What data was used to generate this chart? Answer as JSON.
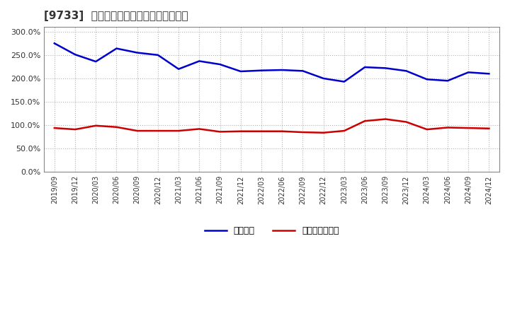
{
  "title": "[9733]  固定比率、固定長期適合率の推移",
  "title_fontsize": 11,
  "background_color": "#ffffff",
  "plot_bg_color": "#ffffff",
  "grid_color": "#aaaaaa",
  "fixed_ratio_dates": [
    "2019-09",
    "2019-12",
    "2020-03",
    "2020-06",
    "2020-09",
    "2020-12",
    "2021-03",
    "2021-06",
    "2021-09",
    "2021-12",
    "2022-03",
    "2022-06",
    "2022-09",
    "2022-12",
    "2023-03",
    "2023-06",
    "2023-09",
    "2023-12",
    "2024-03",
    "2024-06",
    "2024-09",
    "2024-12"
  ],
  "fixed_ratio_values": [
    2.75,
    2.51,
    2.36,
    2.64,
    2.55,
    2.5,
    2.2,
    2.37,
    2.3,
    2.15,
    2.17,
    2.18,
    2.16,
    2.0,
    1.93,
    2.24,
    2.22,
    2.16,
    1.98,
    1.95,
    2.13,
    2.1
  ],
  "fixed_lt_dates": [
    "2019-09",
    "2019-12",
    "2020-03",
    "2020-06",
    "2020-09",
    "2020-12",
    "2021-03",
    "2021-06",
    "2021-09",
    "2021-12",
    "2022-03",
    "2022-06",
    "2022-09",
    "2022-12",
    "2023-03",
    "2023-06",
    "2023-09",
    "2023-12",
    "2024-03",
    "2024-06",
    "2024-09",
    "2024-12"
  ],
  "fixed_lt_values": [
    0.94,
    0.91,
    0.99,
    0.96,
    0.88,
    0.88,
    0.88,
    0.92,
    0.86,
    0.87,
    0.87,
    0.87,
    0.85,
    0.84,
    0.88,
    1.09,
    1.13,
    1.07,
    0.91,
    0.95,
    0.94,
    0.93
  ],
  "fixed_ratio_color": "#0000cc",
  "fixed_lt_color": "#cc0000",
  "fixed_ratio_label": "固定比率",
  "fixed_lt_label": "固定長期適合率",
  "line_width": 1.8,
  "xtick_labels": [
    "2019/09",
    "2019/12",
    "2020/03",
    "2020/06",
    "2020/09",
    "2020/12",
    "2021/03",
    "2021/06",
    "2021/09",
    "2021/12",
    "2022/03",
    "2022/06",
    "2022/09",
    "2022/12",
    "2023/03",
    "2023/06",
    "2023/09",
    "2023/12",
    "2024/03",
    "2024/06",
    "2024/09",
    "2024/12"
  ]
}
